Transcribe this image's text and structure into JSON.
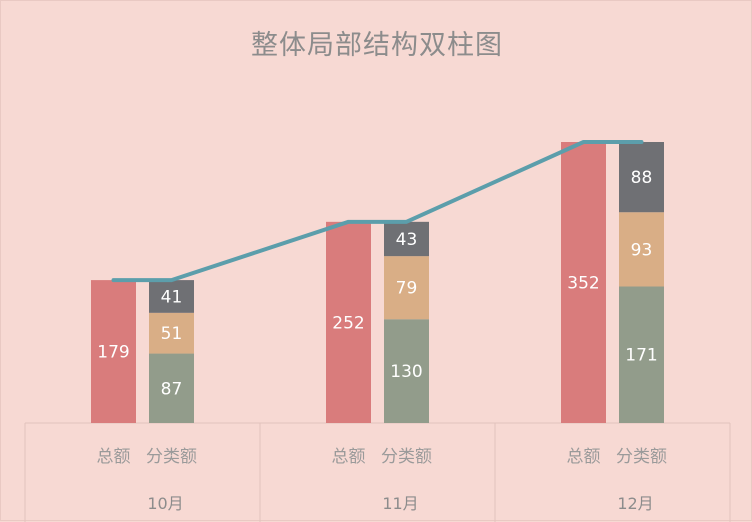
{
  "chart_data": {
    "type": "bar",
    "title": "整体局部结构双柱图",
    "categories": [
      "10月",
      "11月",
      "12月"
    ],
    "bar_labels": [
      "总额",
      "分类额"
    ],
    "total": [
      179,
      252,
      352
    ],
    "segments": [
      {
        "values": [
          87,
          130,
          171
        ],
        "color": "#929c8b"
      },
      {
        "values": [
          51,
          79,
          93
        ],
        "color": "#d9ae86"
      },
      {
        "values": [
          41,
          43,
          88
        ],
        "color": "#6f7074"
      }
    ],
    "total_color": "#d97c7c",
    "trend_line": {
      "values": [
        179,
        252,
        352
      ],
      "color": "#5c9eab"
    },
    "ylim": [
      0,
      352
    ]
  }
}
